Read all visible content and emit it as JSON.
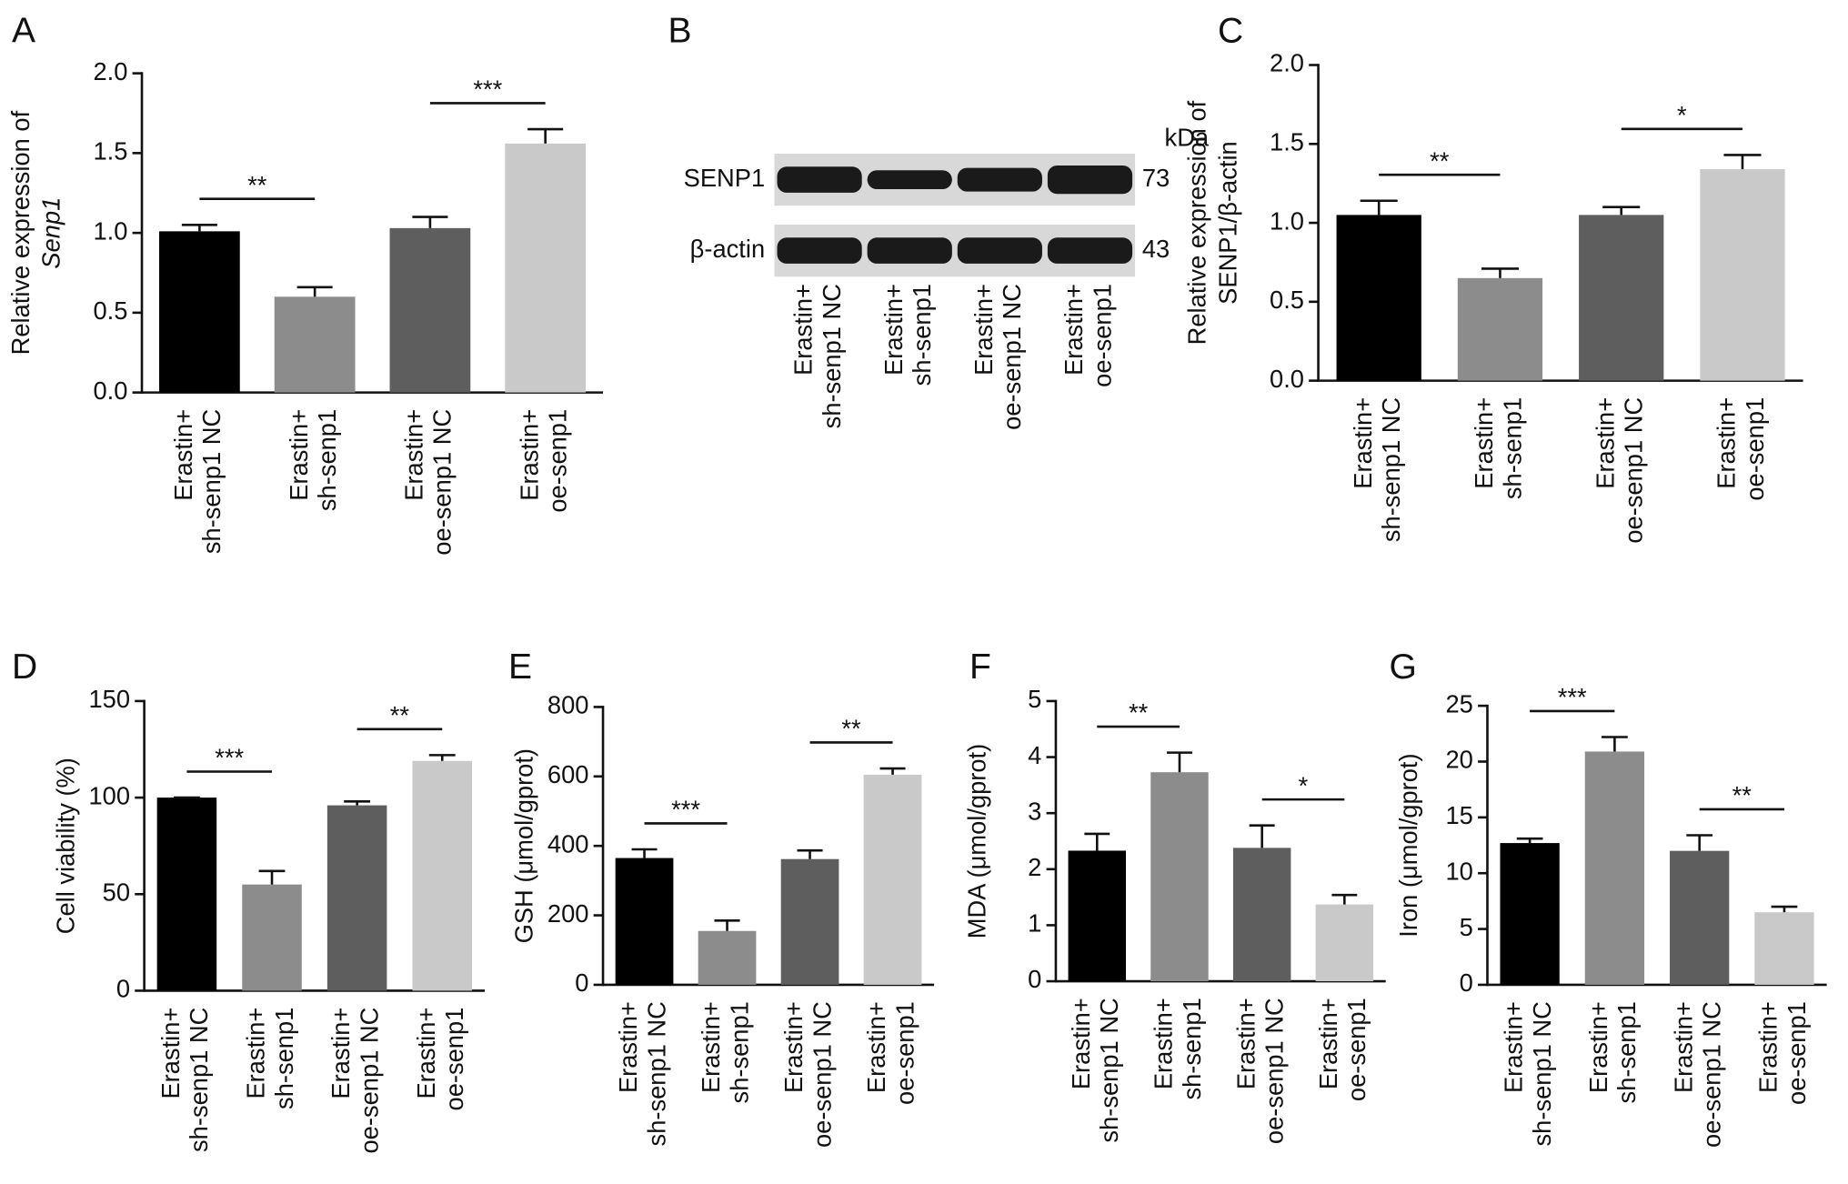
{
  "chart_data": [
    {
      "type": "bar",
      "panel": "A",
      "ylabel": [
        "Relative expression of",
        "Senp1"
      ],
      "categories": [
        [
          "Erastin+",
          "sh-senp1 NC"
        ],
        [
          "Erastin+",
          "sh-senp1"
        ],
        [
          "Erastin+",
          "oe-senp1 NC"
        ],
        [
          "Erastin+",
          "oe-senp1"
        ]
      ],
      "values": [
        1.01,
        0.6,
        1.03,
        1.56
      ],
      "errors": [
        0.04,
        0.06,
        0.07,
        0.09
      ],
      "colors": [
        "#000000",
        "#8c8c8c",
        "#5e5e5e",
        "#c9c9c9"
      ],
      "ylim": [
        0,
        2
      ],
      "yticks": [
        {
          "value": 0,
          "label": "0.0"
        },
        {
          "value": 0.5,
          "label": "0.5"
        },
        {
          "value": 1,
          "label": "1.0"
        },
        {
          "value": 1.5,
          "label": "1.5"
        },
        {
          "value": 2,
          "label": "2.0"
        }
      ],
      "comparisons": [
        {
          "groups": [
            0,
            1
          ],
          "label": "**"
        },
        {
          "groups": [
            2,
            3
          ],
          "label": "***"
        }
      ]
    },
    {
      "type": "blot",
      "panel": "B",
      "unit": "kDa",
      "bands": [
        {
          "label": "SENP1",
          "kda": 73
        },
        {
          "label": "β-actin",
          "kda": 43
        }
      ],
      "categories": [
        [
          "Erastin+",
          "sh-senp1 NC"
        ],
        [
          "Erastin+",
          "sh-senp1"
        ],
        [
          "Erastin+",
          "oe-senp1 NC"
        ],
        [
          "Erastin+",
          "oe-senp1"
        ]
      ]
    },
    {
      "type": "bar",
      "panel": "C",
      "ylabel": [
        "Relative expression of",
        "SENP1/β-actin"
      ],
      "categories": [
        [
          "Erastin+",
          "sh-senp1 NC"
        ],
        [
          "Erastin+",
          "sh-senp1"
        ],
        [
          "Erastin+",
          "oe-senp1 NC"
        ],
        [
          "Erastin+",
          "oe-senp1"
        ]
      ],
      "values": [
        1.05,
        0.65,
        1.05,
        1.34
      ],
      "errors": [
        0.09,
        0.06,
        0.05,
        0.09
      ],
      "colors": [
        "#000000",
        "#8c8c8c",
        "#5e5e5e",
        "#c9c9c9"
      ],
      "ylim": [
        0,
        2
      ],
      "yticks": [
        {
          "value": 0,
          "label": "0.0"
        },
        {
          "value": 0.5,
          "label": "0.5"
        },
        {
          "value": 1,
          "label": "1.0"
        },
        {
          "value": 1.5,
          "label": "1.5"
        },
        {
          "value": 2,
          "label": "2.0"
        }
      ],
      "comparisons": [
        {
          "groups": [
            0,
            1
          ],
          "label": "**"
        },
        {
          "groups": [
            2,
            3
          ],
          "label": "*"
        }
      ]
    },
    {
      "type": "bar",
      "panel": "D",
      "ylabel": [
        "Cell viability (%)"
      ],
      "categories": [
        [
          "Erastin+",
          "sh-senp1 NC"
        ],
        [
          "Erastin+",
          "sh-senp1"
        ],
        [
          "Erastin+",
          "oe-senp1 NC"
        ],
        [
          "Erastin+",
          "oe-senp1"
        ]
      ],
      "values": [
        100,
        55,
        96,
        119
      ],
      "errors": [
        0,
        7,
        2,
        3
      ],
      "colors": [
        "#000000",
        "#8c8c8c",
        "#5e5e5e",
        "#c9c9c9"
      ],
      "ylim": [
        0,
        150
      ],
      "yticks": [
        0,
        50,
        100,
        150
      ],
      "comparisons": [
        {
          "groups": [
            0,
            1
          ],
          "label": "***"
        },
        {
          "groups": [
            2,
            3
          ],
          "label": "**"
        }
      ]
    },
    {
      "type": "bar",
      "panel": "E",
      "ylabel": [
        "GSH (μmol/gprot)"
      ],
      "categories": [
        [
          "Erastin+",
          "sh-senp1 NC"
        ],
        [
          "Erastin+",
          "sh-senp1"
        ],
        [
          "Erastin+",
          "oe-senp1 NC"
        ],
        [
          "Erastin+",
          "oe-senp1"
        ]
      ],
      "values": [
        365,
        155,
        362,
        605
      ],
      "errors": [
        25,
        30,
        25,
        18
      ],
      "colors": [
        "#000000",
        "#8c8c8c",
        "#5e5e5e",
        "#c9c9c9"
      ],
      "ylim": [
        0,
        800
      ],
      "yticks": [
        0,
        200,
        400,
        600,
        800
      ],
      "comparisons": [
        {
          "groups": [
            0,
            1
          ],
          "label": "***"
        },
        {
          "groups": [
            2,
            3
          ],
          "label": "**"
        }
      ]
    },
    {
      "type": "bar",
      "panel": "F",
      "ylabel": [
        "MDA (μmol/gprot)"
      ],
      "categories": [
        [
          "Erastin+",
          "sh-senp1 NC"
        ],
        [
          "Erastin+",
          "sh-senp1"
        ],
        [
          "Erastin+",
          "oe-senp1 NC"
        ],
        [
          "Erastin+",
          "oe-senp1"
        ]
      ],
      "values": [
        2.33,
        3.73,
        2.38,
        1.37
      ],
      "errors": [
        0.3,
        0.35,
        0.4,
        0.17
      ],
      "colors": [
        "#000000",
        "#8c8c8c",
        "#5e5e5e",
        "#c9c9c9"
      ],
      "ylim": [
        0,
        5
      ],
      "yticks": [
        0,
        1,
        2,
        3,
        4,
        5
      ],
      "comparisons": [
        {
          "groups": [
            0,
            1
          ],
          "label": "**"
        },
        {
          "groups": [
            2,
            3
          ],
          "label": "*"
        }
      ]
    },
    {
      "type": "bar",
      "panel": "G",
      "ylabel": [
        "Iron (μmol/gprot)"
      ],
      "categories": [
        [
          "Erastin+",
          "sh-senp1 NC"
        ],
        [
          "Erastin+",
          "sh-senp1"
        ],
        [
          "Erastin+",
          "oe-senp1 NC"
        ],
        [
          "Erastin+",
          "oe-senp1"
        ]
      ],
      "values": [
        12.7,
        20.9,
        12.0,
        6.5
      ],
      "errors": [
        0.4,
        1.3,
        1.4,
        0.5
      ],
      "colors": [
        "#000000",
        "#8c8c8c",
        "#5e5e5e",
        "#c9c9c9"
      ],
      "ylim": [
        0,
        25
      ],
      "yticks": [
        0,
        5,
        10,
        15,
        20,
        25
      ],
      "comparisons": [
        {
          "groups": [
            0,
            1
          ],
          "label": "***"
        },
        {
          "groups": [
            2,
            3
          ],
          "label": "**"
        }
      ]
    }
  ]
}
